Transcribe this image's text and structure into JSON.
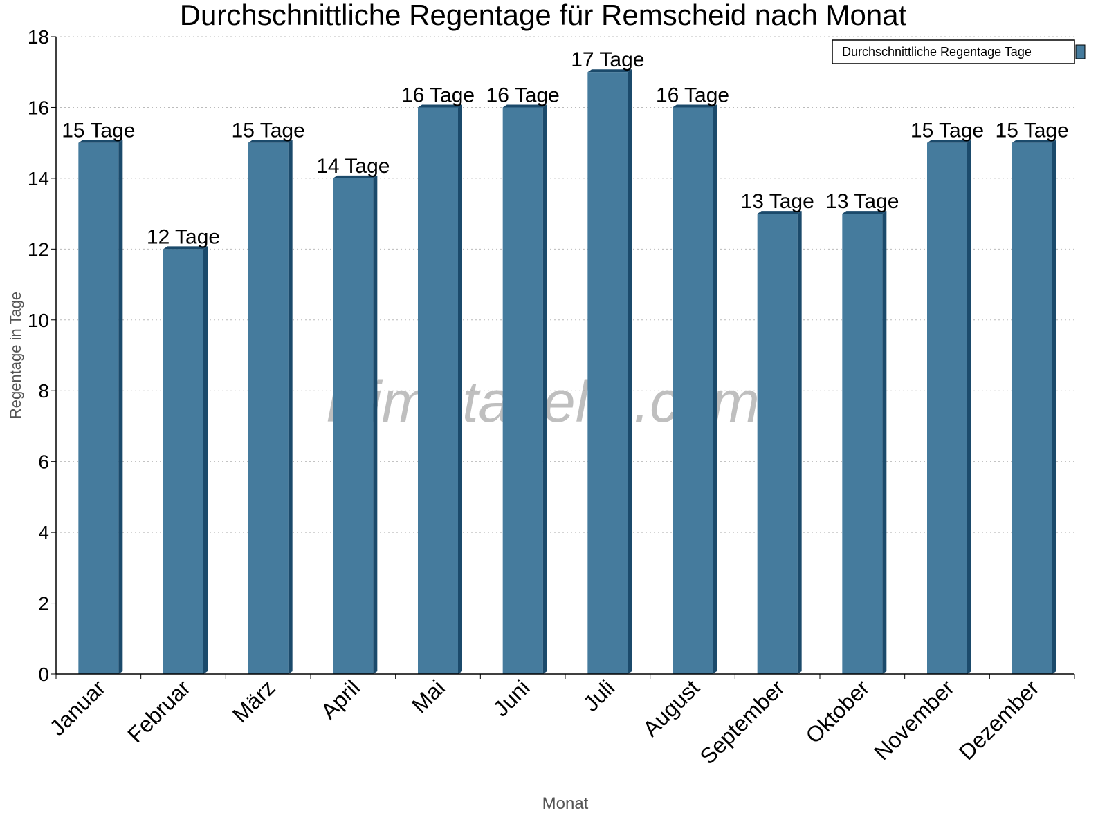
{
  "chart_data": {
    "type": "bar",
    "title": "Durchschnittliche Regentage für Remscheid nach Monat",
    "xlabel": "Monat",
    "ylabel": "Regentage in Tage",
    "ylim": [
      0,
      18
    ],
    "yticks": [
      0,
      2,
      4,
      6,
      8,
      10,
      12,
      14,
      16,
      18
    ],
    "grid": true,
    "legend_position": "top-right",
    "categories": [
      "Januar",
      "Februar",
      "März",
      "April",
      "Mai",
      "Juni",
      "Juli",
      "August",
      "September",
      "Oktober",
      "November",
      "Dezember"
    ],
    "series": [
      {
        "name": "Durchschnittliche Regentage Tage",
        "values": [
          15,
          12,
          15,
          14,
          16,
          16,
          17,
          16,
          13,
          13,
          15,
          15
        ],
        "labels": [
          "15 Tage",
          "12 Tage",
          "15 Tage",
          "14 Tage",
          "16 Tage",
          "16 Tage",
          "17 Tage",
          "16 Tage",
          "13 Tage",
          "13 Tage",
          "15 Tage",
          "15 Tage"
        ],
        "color": "#457b9d",
        "side_color": "#1b4a6b"
      }
    ],
    "watermark": "klimatabelle.com"
  }
}
